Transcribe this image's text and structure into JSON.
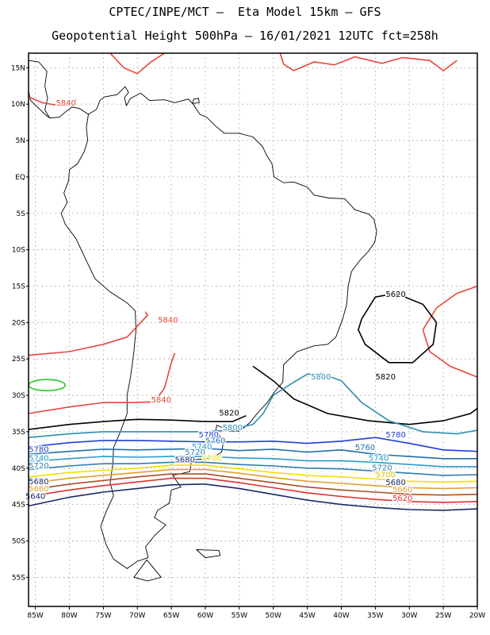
{
  "header": {
    "line1": "CPTEC/INPE/MCT –  Eta Model 15km – GFS",
    "line2": "Geopotential Height 500hPa – 16/01/2021 12UTC fct=258h"
  },
  "axes": {
    "lat_labels": [
      "15N",
      "10N",
      "5N",
      "EQ",
      "5S",
      "10S",
      "15S",
      "20S",
      "25S",
      "30S",
      "35S",
      "40S",
      "45S",
      "50S",
      "55S"
    ],
    "lat_values": [
      15,
      10,
      5,
      0,
      -5,
      -10,
      -15,
      -20,
      -25,
      -30,
      -35,
      -40,
      -45,
      -50,
      -55
    ],
    "lon_labels": [
      "85W",
      "80W",
      "75W",
      "70W",
      "65W",
      "60W",
      "55W",
      "50W",
      "45W",
      "40W",
      "35W",
      "30W",
      "25W",
      "20W"
    ],
    "lon_values": [
      -85,
      -80,
      -75,
      -70,
      -65,
      -60,
      -55,
      -50,
      -45,
      -40,
      -35,
      -30,
      -25,
      -20
    ],
    "lon_range": [
      -86,
      -20
    ],
    "lat_range": [
      -59,
      17
    ],
    "grid": true
  },
  "contours": [
    {
      "value": "5840",
      "color": "#e8463a"
    },
    {
      "value": "5820",
      "color": "#000000"
    },
    {
      "value": "5800",
      "color": "#2f8fb0"
    },
    {
      "value": "5780",
      "color": "#1f3fd6"
    },
    {
      "value": "5760",
      "color": "#1e6fb0"
    },
    {
      "value": "5740",
      "color": "#2a9ad0"
    },
    {
      "value": "5720",
      "color": "#2a7fb0"
    },
    {
      "value": "5700",
      "color": "#f0e000"
    },
    {
      "value": "5680",
      "color": "#e0a030"
    },
    {
      "value": "5660",
      "color": "#a85028"
    },
    {
      "value": "5640",
      "color": "#e03030"
    },
    {
      "value": "5620",
      "color": "#1a2a6a"
    }
  ],
  "labels": [
    {
      "text": "5840",
      "lon": -80.5,
      "lat": 9.8,
      "color": "#e8463a"
    },
    {
      "text": "5840",
      "lon": -65.5,
      "lat": -20.0,
      "color": "#e8463a"
    },
    {
      "text": "5840",
      "lon": -66.5,
      "lat": -31.0,
      "color": "#e8463a"
    },
    {
      "text": "5620",
      "lon": -32.0,
      "lat": -16.5,
      "color": "#000000"
    },
    {
      "text": "5820",
      "lon": -33.5,
      "lat": -27.8,
      "color": "#000000"
    },
    {
      "text": "5820",
      "lon": -56.5,
      "lat": -32.8,
      "color": "#000000"
    },
    {
      "text": "5800",
      "lon": -43.0,
      "lat": -27.8,
      "color": "#2f8fb0"
    },
    {
      "text": "5800",
      "lon": -56.0,
      "lat": -34.8,
      "color": "#2f8fb0"
    },
    {
      "text": "5780",
      "lon": -59.5,
      "lat": -35.8,
      "color": "#1f3fd6"
    },
    {
      "text": "5780",
      "lon": -32.0,
      "lat": -35.8,
      "color": "#1f3fd6"
    },
    {
      "text": "5760",
      "lon": -58.5,
      "lat": -36.6,
      "color": "#1e6fb0"
    },
    {
      "text": "5760",
      "lon": -36.5,
      "lat": -37.5,
      "color": "#1e6fb0"
    },
    {
      "text": "5740",
      "lon": -60.5,
      "lat": -37.4,
      "color": "#2a9ad0"
    },
    {
      "text": "5740",
      "lon": -34.5,
      "lat": -39.0,
      "color": "#2a9ad0"
    },
    {
      "text": "5720",
      "lon": -61.5,
      "lat": -38.2,
      "color": "#2a7fb0"
    },
    {
      "text": "5720",
      "lon": -34.0,
      "lat": -40.3,
      "color": "#2a7fb0"
    },
    {
      "text": "5700",
      "lon": -59.0,
      "lat": -39.0,
      "color": "#f0e000"
    },
    {
      "text": "5700",
      "lon": -33.5,
      "lat": -41.3,
      "color": "#e0c000"
    },
    {
      "text": "5680",
      "lon": -63.0,
      "lat": -39.2,
      "color": "#1a2a6a"
    },
    {
      "text": "5680",
      "lon": -32.0,
      "lat": -42.3,
      "color": "#1a2a6a"
    },
    {
      "text": "5660",
      "lon": -31.0,
      "lat": -43.3,
      "color": "#e0a030"
    },
    {
      "text": "5620",
      "lon": -31.0,
      "lat": -44.5,
      "color": "#e03030"
    },
    {
      "text": "5780",
      "lon": -84.5,
      "lat": -37.8,
      "color": "#1f3fd6"
    },
    {
      "text": "5740",
      "lon": -84.5,
      "lat": -39.0,
      "color": "#2a9ad0"
    },
    {
      "text": "5720",
      "lon": -84.5,
      "lat": -40.0,
      "color": "#2a7fb0"
    },
    {
      "text": "5680",
      "lon": -84.5,
      "lat": -42.2,
      "color": "#1a2a6a"
    },
    {
      "text": "5660",
      "lon": -84.5,
      "lat": -43.2,
      "color": "#e0a030"
    },
    {
      "text": "5640",
      "lon": -85.0,
      "lat": -44.2,
      "color": "#1a2a6a"
    }
  ]
}
